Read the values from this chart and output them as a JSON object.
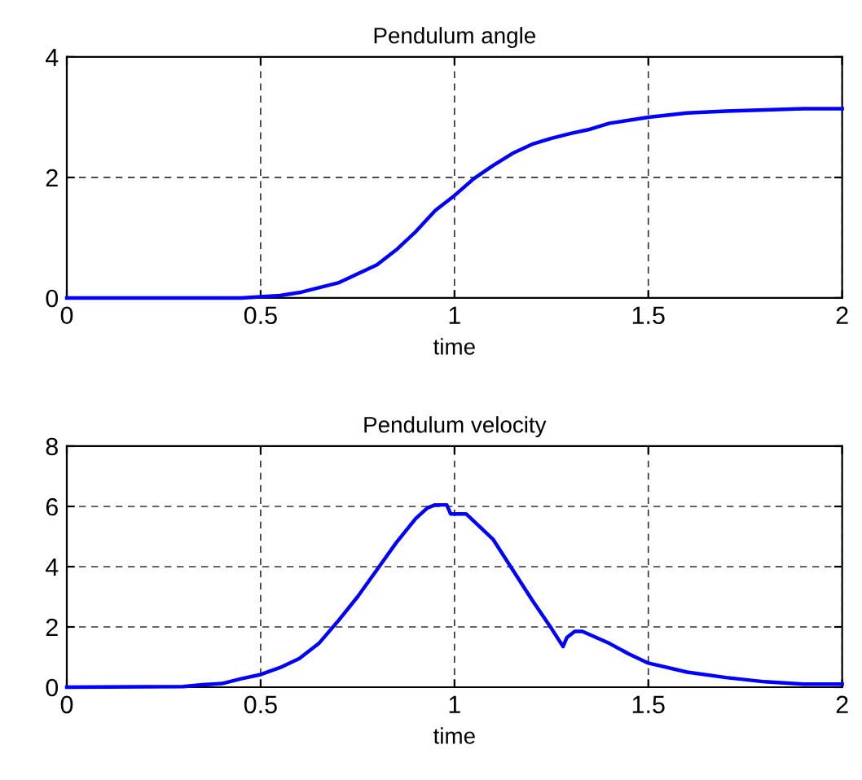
{
  "chart_data": [
    {
      "type": "line",
      "title": "Pendulum angle",
      "xlabel": "time",
      "xlim": [
        0,
        2
      ],
      "xticks": [
        0,
        0.5,
        1,
        1.5,
        2
      ],
      "ylim": [
        0,
        4
      ],
      "yticks": [
        0,
        2,
        4
      ],
      "grid": true,
      "line_style": "solid",
      "series": [
        {
          "color": "#0000ff",
          "x": [
            0,
            0.45,
            0.5,
            0.55,
            0.6,
            0.7,
            0.8,
            0.85,
            0.9,
            0.95,
            1.0,
            1.05,
            1.1,
            1.15,
            1.2,
            1.25,
            1.3,
            1.35,
            1.4,
            1.5,
            1.6,
            1.7,
            1.8,
            1.9,
            2.0
          ],
          "values": [
            0,
            0,
            0.02,
            0.04,
            0.09,
            0.25,
            0.55,
            0.8,
            1.1,
            1.45,
            1.7,
            1.98,
            2.2,
            2.4,
            2.55,
            2.65,
            2.73,
            2.8,
            2.9,
            3.0,
            3.07,
            3.1,
            3.12,
            3.14,
            3.14
          ]
        }
      ]
    },
    {
      "type": "line",
      "title": "Pendulum velocity",
      "xlabel": "time",
      "xlim": [
        0,
        2
      ],
      "xticks": [
        0,
        0.5,
        1,
        1.5,
        2
      ],
      "ylim": [
        0,
        8
      ],
      "yticks": [
        0,
        2,
        4,
        6,
        8
      ],
      "grid": true,
      "line_style": "solid",
      "series": [
        {
          "color": "#0000ff",
          "x": [
            0,
            0.3,
            0.35,
            0.4,
            0.45,
            0.5,
            0.55,
            0.6,
            0.65,
            0.7,
            0.75,
            0.8,
            0.85,
            0.9,
            0.93,
            0.95,
            0.98,
            0.99,
            1.03,
            1.1,
            1.15,
            1.2,
            1.25,
            1.28,
            1.29,
            1.31,
            1.33,
            1.4,
            1.45,
            1.5,
            1.6,
            1.7,
            1.8,
            1.9,
            2.0
          ],
          "values": [
            0,
            0.02,
            0.08,
            0.12,
            0.28,
            0.42,
            0.65,
            0.95,
            1.45,
            2.2,
            3.0,
            3.9,
            4.8,
            5.6,
            5.95,
            6.05,
            6.05,
            5.75,
            5.75,
            4.9,
            3.9,
            2.9,
            1.95,
            1.35,
            1.65,
            1.85,
            1.85,
            1.45,
            1.1,
            0.8,
            0.5,
            0.32,
            0.18,
            0.1,
            0.1
          ]
        }
      ]
    }
  ]
}
